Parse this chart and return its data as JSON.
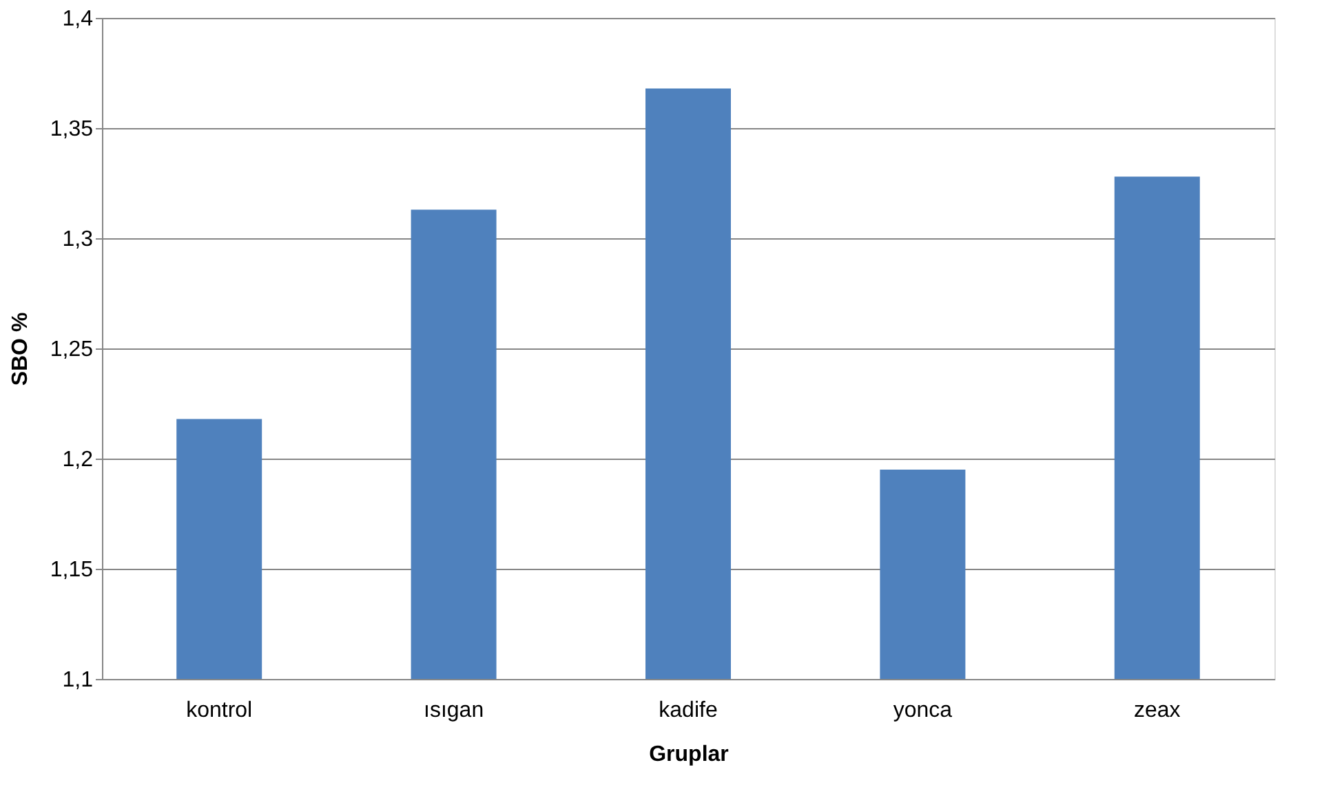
{
  "chart_data": {
    "type": "bar",
    "xlabel": "Gruplar",
    "ylabel": "SBO %",
    "categories": [
      "kontrol",
      "ısıgan",
      "kadife",
      "yonca",
      "zeax"
    ],
    "values": [
      1.218,
      1.313,
      1.368,
      1.195,
      1.328
    ],
    "color": "#4f81bd",
    "ylim": [
      1.1,
      1.4
    ],
    "yticks": [
      {
        "value": 1.1,
        "label": "1,1"
      },
      {
        "value": 1.15,
        "label": "1,15"
      },
      {
        "value": 1.2,
        "label": "1,2"
      },
      {
        "value": 1.25,
        "label": "1,25"
      },
      {
        "value": 1.3,
        "label": "1,3"
      },
      {
        "value": 1.35,
        "label": "1,35"
      },
      {
        "value": 1.4,
        "label": "1,4"
      }
    ],
    "grid": "y"
  }
}
